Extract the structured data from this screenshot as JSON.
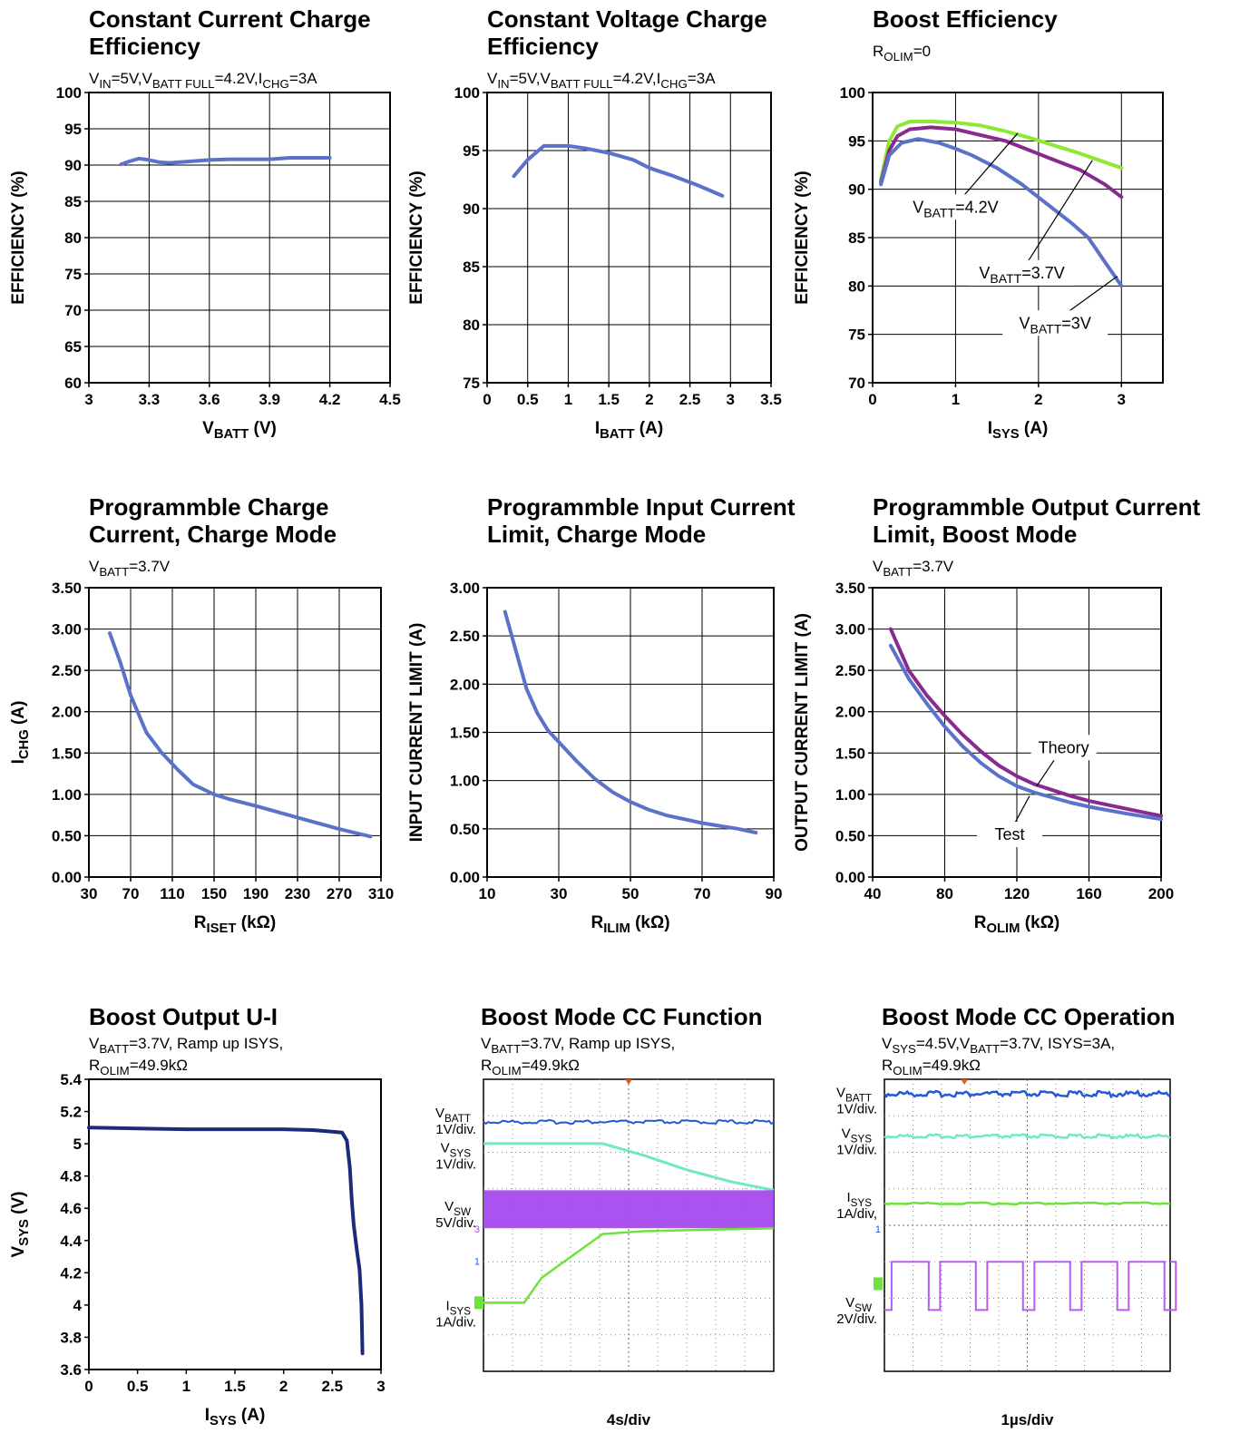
{
  "chart_data": [
    {
      "id": "c1",
      "type": "line",
      "title": [
        "Constant Current Charge",
        "Efficiency"
      ],
      "condition": [
        {
          "t": "V"
        },
        {
          "t": "IN",
          "sub": true
        },
        {
          "t": "=5V,V"
        },
        {
          "t": "BATT FULL",
          "sub": true
        },
        {
          "t": "=4.2V,I"
        },
        {
          "t": "CHG",
          "sub": true
        },
        {
          "t": "=3A"
        }
      ],
      "xlabel": [
        {
          "t": "V"
        },
        {
          "t": "BATT",
          "sub": true
        },
        {
          "t": " (V)"
        }
      ],
      "ylabel": "EFFICIENCY (%)",
      "xlim": [
        3,
        4.5
      ],
      "ylim": [
        60,
        100
      ],
      "xticks": [
        3,
        3.3,
        3.6,
        3.9,
        4.2,
        4.5
      ],
      "xticklabels": [
        "3",
        "3.3",
        "3.6",
        "3.9",
        "4.2",
        "4.5"
      ],
      "yticks": [
        60,
        65,
        70,
        75,
        80,
        85,
        90,
        95,
        100
      ],
      "yticklabels": [
        "60",
        "65",
        "70",
        "75",
        "80",
        "85",
        "90",
        "95",
        "100"
      ],
      "grid": true,
      "series": [
        {
          "color": "#5b72c8",
          "x": [
            3.16,
            3.2,
            3.25,
            3.3,
            3.35,
            3.4,
            3.5,
            3.6,
            3.7,
            3.8,
            3.9,
            4.0,
            4.1,
            4.2
          ],
          "y": [
            90.1,
            90.5,
            90.9,
            90.7,
            90.4,
            90.3,
            90.5,
            90.7,
            90.8,
            90.8,
            90.8,
            91.0,
            91.0,
            91.0
          ]
        }
      ],
      "annotations": []
    },
    {
      "id": "c2",
      "type": "line",
      "title": [
        "Constant Voltage Charge",
        "Efficiency"
      ],
      "condition": [
        {
          "t": "V"
        },
        {
          "t": "IN",
          "sub": true
        },
        {
          "t": "=5V,V"
        },
        {
          "t": "BATT FULL",
          "sub": true
        },
        {
          "t": "=4.2V,I"
        },
        {
          "t": "CHG",
          "sub": true
        },
        {
          "t": "=3A"
        }
      ],
      "xlabel": [
        {
          "t": "I"
        },
        {
          "t": "BATT",
          "sub": true
        },
        {
          "t": " (A)"
        }
      ],
      "ylabel": "EFFICIENCY (%)",
      "xlim": [
        0,
        3.5
      ],
      "ylim": [
        75,
        100
      ],
      "xticks": [
        0,
        0.5,
        1,
        1.5,
        2,
        2.5,
        3,
        3.5
      ],
      "xticklabels": [
        "0",
        "0.5",
        "1",
        "1.5",
        "2",
        "2.5",
        "3",
        "3.5"
      ],
      "yticks": [
        75,
        80,
        85,
        90,
        95,
        100
      ],
      "yticklabels": [
        "75",
        "80",
        "85",
        "90",
        "95",
        "100"
      ],
      "grid": true,
      "series": [
        {
          "color": "#5b72c8",
          "x": [
            0.33,
            0.5,
            0.7,
            1.0,
            1.2,
            1.5,
            1.8,
            2.0,
            2.3,
            2.6,
            2.9
          ],
          "y": [
            92.8,
            94.2,
            95.4,
            95.4,
            95.2,
            94.8,
            94.2,
            93.5,
            92.8,
            92.0,
            91.1
          ]
        }
      ],
      "annotations": []
    },
    {
      "id": "c3",
      "type": "line",
      "title": [
        "Boost Efficiency"
      ],
      "condition": [
        {
          "t": "R"
        },
        {
          "t": "OLIM",
          "sub": true
        },
        {
          "t": "=0"
        }
      ],
      "xlabel": [
        {
          "t": "I"
        },
        {
          "t": "SYS",
          "sub": true
        },
        {
          "t": " (A)"
        }
      ],
      "ylabel": "EFFICIENCY (%)",
      "xlim": [
        0,
        3.5
      ],
      "ylim": [
        70,
        100
      ],
      "xticks": [
        0,
        1,
        2,
        3
      ],
      "xticklabels": [
        "0",
        "1",
        "2",
        "3"
      ],
      "yticks": [
        70,
        75,
        80,
        85,
        90,
        95,
        100
      ],
      "yticklabels": [
        "70",
        "75",
        "80",
        "85",
        "90",
        "95",
        "100"
      ],
      "grid": true,
      "series": [
        {
          "name": "VBATT=4.2V",
          "color": "#8ee836",
          "x": [
            0.1,
            0.2,
            0.3,
            0.45,
            0.7,
            1.0,
            1.3,
            1.6,
            1.9,
            2.2,
            2.5,
            2.8,
            3.0
          ],
          "y": [
            91,
            95,
            96.5,
            97,
            97,
            96.9,
            96.6,
            96.0,
            95.3,
            94.5,
            93.7,
            92.8,
            92.2
          ]
        },
        {
          "name": "VBATT=3.7V",
          "color": "#882a8f",
          "x": [
            0.1,
            0.2,
            0.3,
            0.45,
            0.7,
            1.0,
            1.3,
            1.6,
            1.9,
            2.2,
            2.5,
            2.8,
            3.0
          ],
          "y": [
            90.7,
            94,
            95.5,
            96.2,
            96.4,
            96.2,
            95.6,
            95.0,
            94.0,
            93.0,
            92.0,
            90.5,
            89.2
          ]
        },
        {
          "name": "VBATT=3V",
          "color": "#5b72c8",
          "x": [
            0.1,
            0.2,
            0.35,
            0.55,
            0.8,
            1.0,
            1.2,
            1.5,
            1.8,
            2.1,
            2.4,
            2.6,
            2.8,
            3.0
          ],
          "y": [
            90.5,
            93.5,
            94.8,
            95.2,
            94.8,
            94.2,
            93.5,
            92.2,
            90.5,
            88.5,
            86.5,
            85.0,
            82.5,
            80.0
          ]
        }
      ],
      "annotations": [
        {
          "parts": [
            {
              "t": "V"
            },
            {
              "t": "BATT",
              "sub": true
            },
            {
              "t": "=4.2V"
            }
          ],
          "x": 1.0,
          "y": 87.6,
          "target": [
            1.75,
            95.8
          ]
        },
        {
          "parts": [
            {
              "t": "V"
            },
            {
              "t": "BATT",
              "sub": true
            },
            {
              "t": "=3.7V"
            }
          ],
          "x": 1.8,
          "y": 80.8,
          "target": [
            2.65,
            93.0
          ]
        },
        {
          "parts": [
            {
              "t": "V"
            },
            {
              "t": "BATT",
              "sub": true
            },
            {
              "t": "=3V"
            }
          ],
          "x": 2.2,
          "y": 75.6,
          "target": [
            2.95,
            81.0
          ]
        }
      ]
    },
    {
      "id": "c4",
      "type": "line",
      "title": [
        "Programmble Charge",
        "Current, Charge Mode"
      ],
      "condition": [
        {
          "t": "V"
        },
        {
          "t": "BATT",
          "sub": true
        },
        {
          "t": "=3.7V"
        }
      ],
      "xlabel": [
        {
          "t": "R"
        },
        {
          "t": "ISET",
          "sub": true
        },
        {
          "t": " (kΩ)"
        }
      ],
      "ylabel_parts": [
        {
          "t": "I"
        },
        {
          "t": "CHG",
          "sub": true
        },
        {
          "t": " (A)"
        }
      ],
      "xlim": [
        30,
        310
      ],
      "ylim": [
        0,
        3.5
      ],
      "xticks": [
        30,
        70,
        110,
        150,
        190,
        230,
        270,
        310
      ],
      "xticklabels": [
        "30",
        "70",
        "110",
        "150",
        "190",
        "230",
        "270",
        "310"
      ],
      "yticks": [
        0,
        0.5,
        1,
        1.5,
        2,
        2.5,
        3,
        3.5
      ],
      "yticklabels": [
        "0.00",
        "0.50",
        "1.00",
        "1.50",
        "2.00",
        "2.50",
        "3.00",
        "3.50"
      ],
      "grid": true,
      "series": [
        {
          "color": "#5b72c8",
          "x": [
            50,
            60,
            70,
            85,
            100,
            115,
            130,
            150,
            165,
            190,
            230,
            270,
            300
          ],
          "y": [
            2.95,
            2.6,
            2.2,
            1.75,
            1.5,
            1.3,
            1.12,
            1.0,
            0.94,
            0.86,
            0.72,
            0.58,
            0.49
          ]
        }
      ],
      "annotations": []
    },
    {
      "id": "c5",
      "type": "line",
      "title": [
        "Programmble Input Current",
        "Limit, Charge Mode"
      ],
      "condition": [],
      "xlabel": [
        {
          "t": "R"
        },
        {
          "t": "ILIM",
          "sub": true
        },
        {
          "t": " (kΩ)"
        }
      ],
      "ylabel": "INPUT CURRENT LIMIT (A)",
      "xlim": [
        10,
        90
      ],
      "ylim": [
        0,
        3
      ],
      "xticks": [
        10,
        30,
        50,
        70,
        90
      ],
      "xticklabels": [
        "10",
        "30",
        "50",
        "70",
        "90"
      ],
      "yticks": [
        0,
        0.5,
        1,
        1.5,
        2,
        2.5,
        3
      ],
      "yticklabels": [
        "0.00",
        "0.50",
        "1.00",
        "1.50",
        "2.00",
        "2.50",
        "3.00"
      ],
      "grid": true,
      "series": [
        {
          "color": "#5b72c8",
          "x": [
            15,
            18,
            21,
            24,
            27,
            30,
            35,
            40,
            45,
            50,
            55,
            60,
            70,
            80,
            85
          ],
          "y": [
            2.75,
            2.35,
            1.95,
            1.7,
            1.52,
            1.4,
            1.2,
            1.02,
            0.88,
            0.78,
            0.7,
            0.64,
            0.56,
            0.5,
            0.46
          ]
        }
      ],
      "annotations": []
    },
    {
      "id": "c6",
      "type": "line",
      "title": [
        "Programmble Output Current",
        "Limit, Boost Mode"
      ],
      "condition": [
        {
          "t": "V"
        },
        {
          "t": "BATT",
          "sub": true
        },
        {
          "t": "=3.7V"
        }
      ],
      "xlabel": [
        {
          "t": "R"
        },
        {
          "t": "OLIM",
          "sub": true
        },
        {
          "t": " (kΩ)"
        }
      ],
      "ylabel": "OUTPUT CURRENT LIMIT (A)",
      "xlim": [
        40,
        200
      ],
      "ylim": [
        0,
        3.5
      ],
      "xticks": [
        40,
        80,
        120,
        160,
        200
      ],
      "xticklabels": [
        "40",
        "80",
        "120",
        "160",
        "200"
      ],
      "yticks": [
        0,
        0.5,
        1,
        1.5,
        2,
        2.5,
        3,
        3.5
      ],
      "yticklabels": [
        "0.00",
        "0.50",
        "1.00",
        "1.50",
        "2.00",
        "2.50",
        "3.00",
        "3.50"
      ],
      "grid": true,
      "series": [
        {
          "name": "Theory",
          "color": "#882a8f",
          "x": [
            50,
            60,
            70,
            80,
            90,
            100,
            110,
            120,
            130,
            140,
            150,
            160,
            180,
            200
          ],
          "y": [
            3.0,
            2.5,
            2.2,
            1.95,
            1.72,
            1.52,
            1.35,
            1.22,
            1.12,
            1.05,
            0.98,
            0.92,
            0.83,
            0.74
          ]
        },
        {
          "name": "Test",
          "color": "#5b72c8",
          "x": [
            50,
            60,
            70,
            80,
            90,
            100,
            110,
            120,
            130,
            140,
            150,
            160,
            180,
            200
          ],
          "y": [
            2.8,
            2.4,
            2.1,
            1.82,
            1.58,
            1.38,
            1.22,
            1.1,
            1.02,
            0.96,
            0.9,
            0.85,
            0.77,
            0.7
          ]
        }
      ],
      "annotations": [
        {
          "parts": [
            {
              "t": "Theory"
            }
          ],
          "x": 146,
          "y": 1.5,
          "target": [
            131,
            1.1
          ]
        },
        {
          "parts": [
            {
              "t": "Test"
            }
          ],
          "x": 116,
          "y": 0.45,
          "target": [
            127,
            0.98
          ]
        }
      ]
    },
    {
      "id": "c7",
      "type": "line",
      "title": [
        "Boost Output U-I"
      ],
      "condition": [
        {
          "t": "V"
        },
        {
          "t": "BATT",
          "sub": true
        },
        {
          "t": "=3.7V, Ramp up ISYS,"
        }
      ],
      "condition2": [
        {
          "t": "R"
        },
        {
          "t": "OLIM",
          "sub": true
        },
        {
          "t": "=49.9kΩ"
        }
      ],
      "xlabel": [
        {
          "t": "I"
        },
        {
          "t": "SYS",
          "sub": true
        },
        {
          "t": " (A)"
        }
      ],
      "ylabel_parts": [
        {
          "t": "V"
        },
        {
          "t": "SYS",
          "sub": true
        },
        {
          "t": " (V)"
        }
      ],
      "xlim": [
        0,
        3
      ],
      "ylim": [
        3.6,
        5.4
      ],
      "xticks": [
        0,
        0.5,
        1,
        1.5,
        2,
        2.5,
        3
      ],
      "xticklabels": [
        "0",
        "0.5",
        "1",
        "1.5",
        "2",
        "2.5",
        "3"
      ],
      "yticks": [
        3.6,
        3.8,
        4,
        4.2,
        4.4,
        4.6,
        4.8,
        5,
        5.2,
        5.4
      ],
      "yticklabels": [
        "3.6",
        "3.8",
        "4",
        "4.2",
        "4.4",
        "4.6",
        "4.8",
        "5",
        "5.2",
        "5.4"
      ],
      "grid": false,
      "series": [
        {
          "color": "#1c2a7a",
          "x": [
            0,
            0.5,
            1.0,
            1.5,
            2.0,
            2.3,
            2.5,
            2.6,
            2.65,
            2.68,
            2.7,
            2.72,
            2.75,
            2.78,
            2.8,
            2.81
          ],
          "y": [
            5.1,
            5.095,
            5.09,
            5.09,
            5.09,
            5.085,
            5.075,
            5.07,
            5.02,
            4.85,
            4.65,
            4.5,
            4.35,
            4.22,
            4.0,
            3.7
          ]
        }
      ],
      "annotations": []
    }
  ],
  "scopes": [
    {
      "id": "s1",
      "title": "Boost Mode CC Function",
      "condition": [
        {
          "t": "V"
        },
        {
          "t": "BATT",
          "sub": true
        },
        {
          "t": "=3.7V, Ramp up ISYS,"
        }
      ],
      "condition2": [
        {
          "t": "R"
        },
        {
          "t": "OLIM",
          "sub": true
        },
        {
          "t": "=49.9kΩ"
        }
      ],
      "timebase": "4s/div",
      "channels": [
        {
          "label": [
            {
              "t": "V"
            },
            {
              "t": "BATT",
              "sub": true
            }
          ],
          "scale": "1V/div.",
          "color": "#2459d6"
        },
        {
          "label": [
            {
              "t": "V"
            },
            {
              "t": "SYS",
              "sub": true
            }
          ],
          "scale": "1V/div.",
          "color": "#6fe8c8"
        },
        {
          "label": [
            {
              "t": "V"
            },
            {
              "t": "SW",
              "sub": true
            }
          ],
          "scale": "5V/div.",
          "color": "#a64af0"
        },
        {
          "label": [
            {
              "t": "I"
            },
            {
              "t": "SYS",
              "sub": true
            }
          ],
          "scale": "1A/div.",
          "color": "#6ce23a"
        }
      ]
    },
    {
      "id": "s2",
      "title": "Boost Mode CC Operation",
      "condition": [
        {
          "t": "V"
        },
        {
          "t": "SYS",
          "sub": true
        },
        {
          "t": "=4.5V,V"
        },
        {
          "t": "BATT",
          "sub": true
        },
        {
          "t": "=3.7V, ISYS=3A,"
        }
      ],
      "condition2": [
        {
          "t": "R"
        },
        {
          "t": "OLIM",
          "sub": true
        },
        {
          "t": "=49.9kΩ"
        }
      ],
      "timebase": "1µs/div",
      "channels": [
        {
          "label": [
            {
              "t": "V"
            },
            {
              "t": "BATT",
              "sub": true
            }
          ],
          "scale": "1V/div.",
          "color": "#2459d6"
        },
        {
          "label": [
            {
              "t": "V"
            },
            {
              "t": "SYS",
              "sub": true
            }
          ],
          "scale": "1V/div.",
          "color": "#6fe8c8"
        },
        {
          "label": [
            {
              "t": "I"
            },
            {
              "t": "SYS",
              "sub": true
            }
          ],
          "scale": "1A/div,",
          "color": "#6ce23a"
        },
        {
          "label": [
            {
              "t": "V"
            },
            {
              "t": "SW",
              "sub": true
            }
          ],
          "scale": "2V/div.",
          "color": "#b35cf2"
        }
      ]
    }
  ]
}
